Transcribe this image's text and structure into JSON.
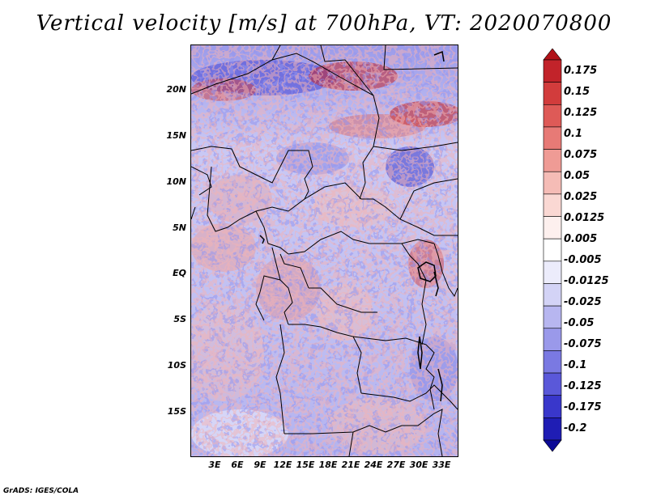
{
  "title": "Vertical velocity [m/s] at 700hPa, VT: 2020070800",
  "footer": "GrADS: IGES/COLA",
  "map": {
    "lat_labels": [
      "20N",
      "15N",
      "10N",
      "5N",
      "EQ",
      "5S",
      "10S",
      "15S"
    ],
    "lon_labels": [
      "3E",
      "6E",
      "9E",
      "12E",
      "15E",
      "18E",
      "21E",
      "24E",
      "27E",
      "30E",
      "33E"
    ]
  },
  "colorbar": {
    "labels": [
      "0.175",
      "0.15",
      "0.125",
      "0.1",
      "0.075",
      "0.05",
      "0.025",
      "0.0125",
      "0.005",
      "-0.005",
      "-0.0125",
      "-0.025",
      "-0.05",
      "-0.075",
      "-0.1",
      "-0.125",
      "-0.175",
      "-0.2"
    ],
    "colors": [
      "#b11218",
      "#c2232a",
      "#d23c3c",
      "#de5a57",
      "#e77a76",
      "#ef9b95",
      "#f5bcb6",
      "#fad8d3",
      "#fdf0ee",
      "#ffffff",
      "#ececfb",
      "#d3d3f6",
      "#b7b6f0",
      "#9a99ea",
      "#7a79e2",
      "#5a58d9",
      "#3937cb",
      "#1f1db4",
      "#0c0a96"
    ]
  }
}
